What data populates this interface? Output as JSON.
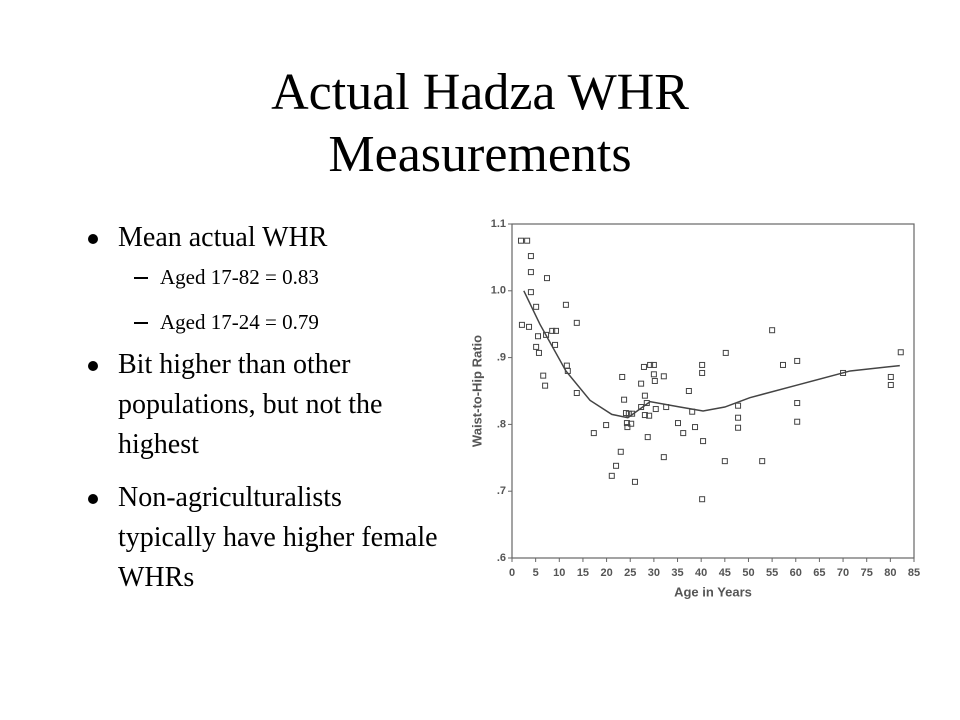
{
  "slide": {
    "title": "Actual Hadza WHR Measurements",
    "bullets": [
      {
        "text": "Mean actual WHR",
        "sub": [
          "Aged 17-82 = 0.83",
          "Aged 17-24 = 0.79"
        ]
      },
      {
        "text": "Bit higher than other populations, but not the highest"
      },
      {
        "text": "Non-agriculturalists typically have higher female WHRs"
      }
    ]
  },
  "chart_data": {
    "type": "scatter",
    "x_label": "Age in Years",
    "y_label": "Waist-to-Hip Ratio",
    "xlim": [
      0,
      85
    ],
    "xticks": [
      0,
      5,
      10,
      15,
      20,
      25,
      30,
      35,
      40,
      45,
      50,
      55,
      60,
      65,
      70,
      75,
      80,
      85
    ],
    "ylim": [
      0.6,
      1.1
    ],
    "yticks": [
      {
        "value": 0.6,
        "label": ".6"
      },
      {
        "value": 0.7,
        "label": ".7"
      },
      {
        "value": 0.8,
        "label": ".8"
      },
      {
        "value": 0.9,
        "label": ".9"
      },
      {
        "value": 1.0,
        "label": "1.0"
      },
      1.1
    ],
    "series": [
      {
        "style": "square",
        "color": "#444444",
        "x": [
          1.9,
          3.2,
          4.0,
          4.0,
          4.0,
          5.1,
          2.1,
          3.6,
          5.5,
          5.7,
          5.1,
          7.4,
          7.2,
          8.5,
          9.1,
          9.3,
          6.6,
          7.0,
          11.4,
          11.6,
          11.8,
          13.7,
          13.7,
          17.3,
          19.9,
          21.1,
          22.0,
          23.0,
          23.3,
          23.7,
          24.1,
          24.3,
          24.4,
          24.7,
          25.2,
          25.4,
          26.0,
          27.3,
          27.3,
          27.9,
          28.1,
          28.1,
          28.5,
          28.7,
          29.0,
          29.2,
          30.0,
          30.0,
          30.2,
          30.4,
          32.1,
          32.1,
          32.6,
          35.1,
          36.2,
          37.4,
          38.1,
          38.7,
          40.2,
          40.2,
          40.4,
          40.2,
          45.0,
          45.2,
          47.8,
          47.8,
          47.8,
          52.9,
          55.0,
          57.3,
          60.3,
          60.3,
          60.3,
          70.0,
          80.1,
          80.1,
          82.2
        ],
        "values": [
          1.075,
          1.075,
          1.052,
          1.028,
          0.998,
          0.976,
          0.949,
          0.946,
          0.932,
          0.907,
          0.916,
          1.019,
          0.934,
          0.94,
          0.919,
          0.94,
          0.873,
          0.858,
          0.979,
          0.888,
          0.88,
          0.952,
          0.847,
          0.787,
          0.799,
          0.723,
          0.738,
          0.759,
          0.871,
          0.837,
          0.817,
          0.802,
          0.796,
          0.816,
          0.801,
          0.816,
          0.714,
          0.861,
          0.826,
          0.886,
          0.843,
          0.814,
          0.832,
          0.781,
          0.813,
          0.889,
          0.889,
          0.875,
          0.865,
          0.823,
          0.872,
          0.751,
          0.826,
          0.802,
          0.787,
          0.85,
          0.819,
          0.796,
          0.877,
          0.889,
          0.775,
          0.688,
          0.745,
          0.907,
          0.828,
          0.81,
          0.795,
          0.745,
          0.941,
          0.889,
          0.895,
          0.832,
          0.804,
          0.877,
          0.871,
          0.859,
          0.908
        ]
      },
      {
        "style": "line",
        "color": "#444444",
        "x": [
          2.5,
          5.9,
          11.4,
          16.5,
          21.1,
          24.5,
          29.2,
          35.5,
          40.4,
          45.0,
          50.3,
          60.9,
          71.5,
          82.0
        ],
        "values": [
          1.0,
          0.95,
          0.88,
          0.836,
          0.815,
          0.81,
          0.834,
          0.826,
          0.82,
          0.826,
          0.84,
          0.86,
          0.88,
          0.888
        ]
      }
    ]
  }
}
